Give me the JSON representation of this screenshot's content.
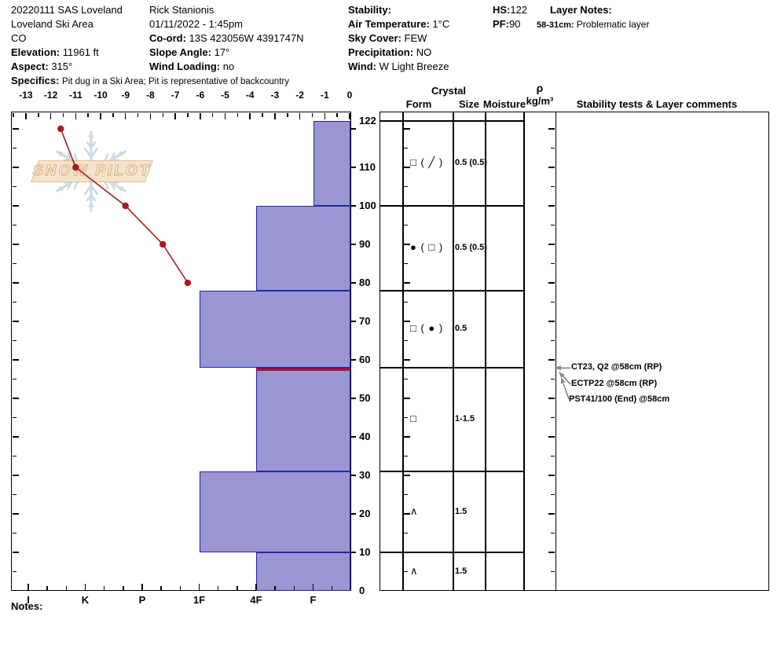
{
  "header": {
    "site": {
      "title": "20220111 SAS Loveland",
      "area": "Loveland Ski Area",
      "state": "CO",
      "elevation_label": "Elevation:",
      "elevation": "11961 ft",
      "aspect_label": "Aspect:",
      "aspect": "315°",
      "specifics_label": "Specifics:",
      "specifics": "Pit dug in a Ski Area; Pit is representative of backcountry"
    },
    "observer": {
      "name": "Rick Stanionis",
      "datetime": "01/11/2022 - 1:45pm",
      "coord_label": "Co-ord:",
      "coord": "13S 423056W 4391747N",
      "slope_label": "Slope Angle:",
      "slope": "17°",
      "wind_loading_label": "Wind Loading:",
      "wind_loading": "no"
    },
    "weather": {
      "stability_label": "Stability:",
      "stability": "",
      "air_temp_label": "Air Temperature:",
      "air_temp": "1°C",
      "sky_label": "Sky Cover:",
      "sky": "FEW",
      "precip_label": "Precipitation:",
      "precip": "NO",
      "wind_label": "Wind:",
      "wind": "W Light Breeze"
    },
    "totals": {
      "hs_label": "HS:",
      "hs": "122",
      "pf_label": "PF:",
      "pf": "90"
    },
    "layer_notes": {
      "title": "Layer Notes:",
      "entry_range": "58-31cm:",
      "entry_text": "Problematic layer"
    }
  },
  "watermark": {
    "text": "SNOW PILOT"
  },
  "chart_data": {
    "type": "snow-pit-profile",
    "temp_axis": {
      "unit": "°C",
      "ticks": [
        -13,
        -12,
        -11,
        -10,
        -9,
        -8,
        -7,
        -6,
        -5,
        -4,
        -3,
        -2,
        -1,
        0
      ],
      "range": [
        -13.7,
        0
      ]
    },
    "depth_axis": {
      "unit": "cm",
      "labels": [
        122,
        110,
        100,
        90,
        80,
        70,
        60,
        50,
        40,
        30,
        20,
        10,
        0
      ],
      "range": [
        0,
        124.5
      ]
    },
    "hardness_axis": {
      "categories": [
        "I",
        "K",
        "P",
        "1F",
        "4F",
        "F"
      ]
    },
    "temperature_profile": [
      {
        "depth_cm": 120,
        "temp_c": -11.6
      },
      {
        "depth_cm": 110,
        "temp_c": -11.0
      },
      {
        "depth_cm": 100,
        "temp_c": -9.0
      },
      {
        "depth_cm": 90,
        "temp_c": -7.5
      },
      {
        "depth_cm": 80,
        "temp_c": -6.5
      }
    ],
    "hardness_layers": [
      {
        "top_cm": 122,
        "bottom_cm": 100,
        "hardness": "F"
      },
      {
        "top_cm": 100,
        "bottom_cm": 78,
        "hardness": "4F"
      },
      {
        "top_cm": 78,
        "bottom_cm": 58,
        "hardness": "1F"
      },
      {
        "top_cm": 58,
        "bottom_cm": 31,
        "hardness": "4F"
      },
      {
        "top_cm": 31,
        "bottom_cm": 10,
        "hardness": "1F"
      },
      {
        "top_cm": 10,
        "bottom_cm": 0,
        "hardness": "4F"
      }
    ],
    "problem_layer_depth_cm": 58
  },
  "table": {
    "headers": {
      "crystal": "Crystal",
      "form": "Form",
      "size": "Size",
      "moisture": "Moisture",
      "rho": "ρ",
      "rho_unit": "kg/m³",
      "stability": "Stability tests & Layer comments"
    },
    "rows": [
      {
        "top_cm": 122,
        "bottom_cm": 100,
        "form": "□ ( ╱ )",
        "size": "0.5 (0.5)",
        "moisture": "",
        "density": ""
      },
      {
        "top_cm": 100,
        "bottom_cm": 78,
        "form": "● ( □ )",
        "size": "0.5 (0.5)",
        "moisture": "",
        "density": ""
      },
      {
        "top_cm": 78,
        "bottom_cm": 58,
        "form": "□ ( ● )",
        "size": "0.5",
        "moisture": "",
        "density": ""
      },
      {
        "top_cm": 58,
        "bottom_cm": 31,
        "form": "□",
        "size": "1-1.5",
        "moisture": "",
        "density": ""
      },
      {
        "top_cm": 31,
        "bottom_cm": 10,
        "form": "∧",
        "size": "1.5",
        "moisture": "",
        "density": ""
      },
      {
        "top_cm": 10,
        "bottom_cm": 0,
        "form": "∧",
        "size": "1.5",
        "moisture": "",
        "density": ""
      }
    ]
  },
  "tests": {
    "target_depth_cm": 58,
    "items": [
      {
        "label": "CT23, Q2 @58cm  (RP)"
      },
      {
        "label": "ECTP22 @58cm  (RP)"
      },
      {
        "label": "PST41/100 (End) @58cm"
      }
    ]
  },
  "notes_label": "Notes:",
  "colors": {
    "bar_fill": "#9a96d2",
    "bar_border": "#2525a8",
    "temp_line": "#a61c1c",
    "problem_layer": "#c00a20",
    "arrow": "#8a8a8a",
    "watermark_flake": "#cdd9e3",
    "watermark_band": "#f5e3c9"
  }
}
